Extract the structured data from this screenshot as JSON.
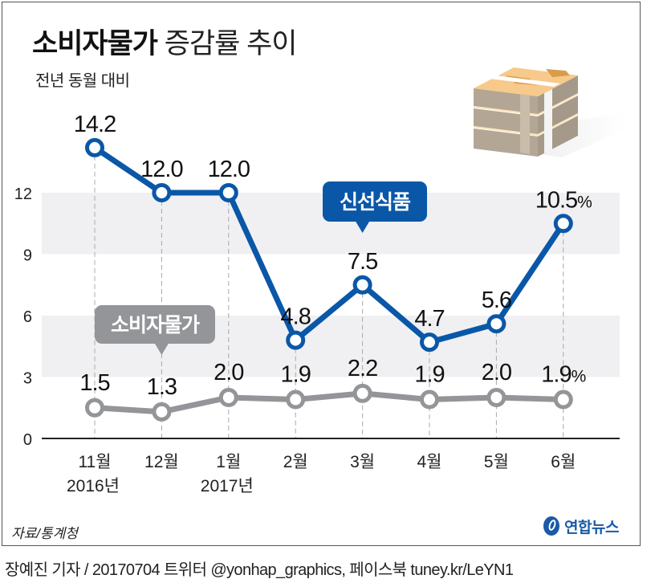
{
  "header": {
    "title_bold": "소비자물가",
    "title_light": "증감률 추이",
    "subtitle": "전년 동월 대비"
  },
  "illustration": {
    "icon": "money-stack-icon"
  },
  "chart_data": {
    "type": "line",
    "title": "소비자물가 증감률 추이",
    "subtitle": "전년 동월 대비",
    "xlabel": "",
    "ylabel": "",
    "unit": "%",
    "ylim": [
      0,
      15
    ],
    "yticks": [
      0,
      3,
      6,
      9,
      12
    ],
    "bands": [
      [
        3,
        6
      ],
      [
        9,
        12
      ]
    ],
    "grid": false,
    "categories": [
      "11월",
      "12월",
      "1월",
      "2월",
      "3월",
      "4월",
      "5월",
      "6월"
    ],
    "year_labels": [
      {
        "index": 0,
        "label": "2016년"
      },
      {
        "index": 2,
        "label": "2017년"
      }
    ],
    "series": [
      {
        "name": "신선식품",
        "color": "#0a57a8",
        "values": [
          14.2,
          12.0,
          12.0,
          4.8,
          7.5,
          4.7,
          5.6,
          10.5
        ],
        "labels": [
          "14.2",
          "12.0",
          "12.0",
          "4.8",
          "7.5",
          "4.7",
          "5.6",
          "10.5%"
        ],
        "callout_index": 4
      },
      {
        "name": "소비자물가",
        "color": "#939598",
        "values": [
          1.5,
          1.3,
          2.0,
          1.9,
          2.2,
          1.9,
          2.0,
          1.9
        ],
        "labels": [
          "1.5",
          "1.3",
          "2.0",
          "1.9",
          "2.2",
          "1.9",
          "2.0",
          "1.9%"
        ],
        "callout_index": 1
      }
    ]
  },
  "footer": {
    "source": "자료/통계청",
    "logo_text": "연합뉴스",
    "logo_icon": "yonhap-logo-icon",
    "credit": "장예진 기자 / 20170704 트위터 @yonhap_graphics, 페이스북 tuney.kr/LeYN1"
  }
}
